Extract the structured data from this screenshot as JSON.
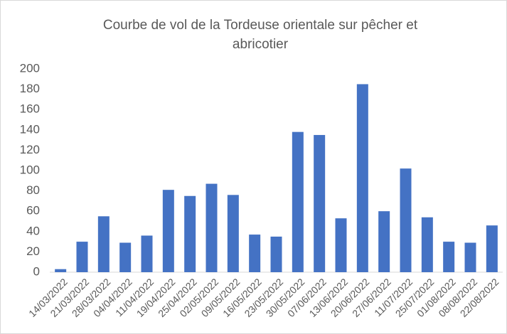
{
  "chart_data": {
    "type": "bar",
    "title": "Courbe de vol de la Tordeuse orientale sur pêcher et abricotier",
    "categories": [
      "14/03/2022",
      "21/03/2022",
      "28/03/2022",
      "04/04/2022",
      "11/04/2022",
      "19/04/2022",
      "25/04/2022",
      "02/05/2022",
      "09/05/2022",
      "16/05/2022",
      "23/05/2022",
      "30/05/2022",
      "07/06/2022",
      "13/06/2022",
      "20/06/2022",
      "27/06/2022",
      "11/07/2022",
      "25/07/2022",
      "01/08/2022",
      "08/08/2022",
      "22/08/2022"
    ],
    "values": [
      3,
      30,
      55,
      29,
      36,
      81,
      75,
      87,
      76,
      37,
      35,
      138,
      135,
      53,
      185,
      60,
      102,
      54,
      30,
      29,
      46
    ],
    "color": "#4472c4",
    "ylim": [
      0,
      200
    ],
    "yticks": [
      0,
      20,
      40,
      60,
      80,
      100,
      120,
      140,
      160,
      180,
      200
    ],
    "grid": false
  }
}
